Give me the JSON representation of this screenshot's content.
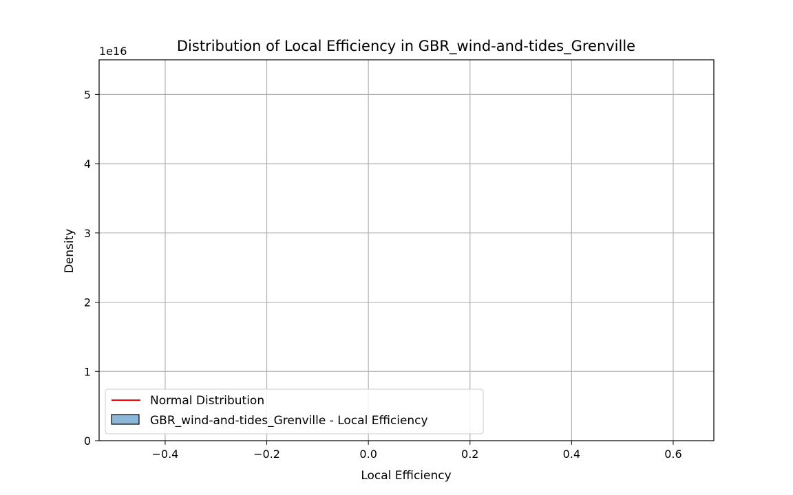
{
  "chart_data": {
    "type": "bar",
    "title": "Distribution of Local Efficiency in GBR_wind-and-tides_Grenville",
    "xlabel": "Local Efficiency",
    "ylabel": "Density",
    "xlim": [
      -0.53,
      0.68
    ],
    "ylim": [
      0,
      55000000000000000
    ],
    "x_ticks": [
      -0.4,
      -0.2,
      0.0,
      0.2,
      0.4,
      0.6
    ],
    "x_tick_labels": [
      "−0.4",
      "−0.2",
      "0.0",
      "0.2",
      "0.4",
      "0.6"
    ],
    "y_ticks": [
      0,
      1,
      2,
      3,
      4,
      5
    ],
    "y_tick_labels": [
      "0",
      "1",
      "2",
      "3",
      "4",
      "5"
    ],
    "y_offset_label": "1e16",
    "grid": true,
    "legend_position": "lower-left",
    "series": [
      {
        "name": "Normal Distribution",
        "kind": "line",
        "color": "#ff0000"
      },
      {
        "name": "GBR_wind-and-tides_Grenville - Local Efficiency",
        "kind": "histogram",
        "color": "#8db7d8",
        "edge_color": "#000000"
      }
    ]
  }
}
